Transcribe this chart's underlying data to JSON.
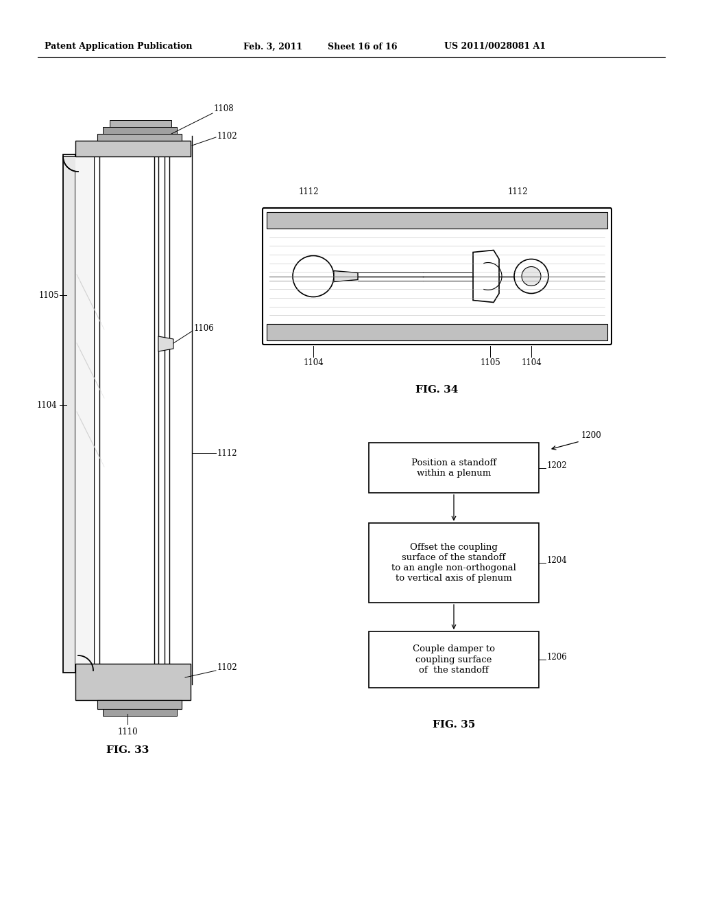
{
  "bg_color": "#ffffff",
  "header_text": "Patent Application Publication",
  "header_date": "Feb. 3, 2011",
  "header_sheet": "Sheet 16 of 16",
  "header_patent": "US 2011/0028081 A1",
  "fig33_label": "FIG. 33",
  "fig34_label": "FIG. 34",
  "fig35_label": "FIG. 35",
  "fontsize_ref": 8.5,
  "fontsize_caption": 11
}
